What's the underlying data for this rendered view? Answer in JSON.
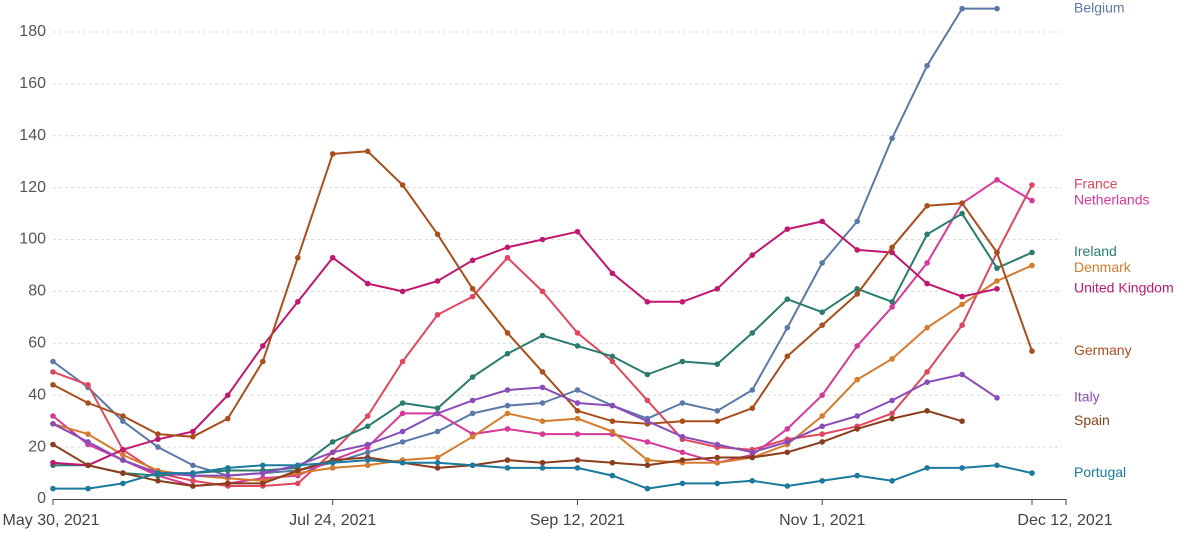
{
  "chart_data": {
    "type": "line",
    "title": "",
    "xlabel": "",
    "ylabel": "",
    "grid": true,
    "x_tick_labels": [
      "May 30, 2021",
      "Jul 24, 2021",
      "Sep 12, 2021",
      "Nov 1, 2021",
      "Dec 12, 2021"
    ],
    "x_tick_index": [
      0,
      8,
      15,
      22,
      28
    ],
    "y_ticks": [
      0,
      20,
      40,
      60,
      80,
      100,
      120,
      140,
      160,
      180
    ],
    "ylim": [
      0,
      190
    ],
    "point_count": 29,
    "series": [
      {
        "name": "Belgium",
        "color": "#5b78a8",
        "values": [
          53,
          43,
          30,
          20,
          13,
          9,
          10,
          11,
          14,
          18,
          22,
          26,
          33,
          36,
          37,
          42,
          36,
          31,
          37,
          34,
          42,
          66,
          91,
          107,
          139,
          167,
          189,
          189
        ]
      },
      {
        "name": "France",
        "color": "#e0475e",
        "values": [
          49,
          44,
          19,
          10,
          7,
          5,
          5,
          6,
          18,
          32,
          53,
          71,
          78,
          93,
          80,
          64,
          53,
          38,
          23,
          20,
          19,
          23,
          25,
          28,
          33,
          49,
          67,
          95,
          121
        ]
      },
      {
        "name": "Netherlands",
        "color": "#d6399a",
        "values": [
          32,
          21,
          15,
          9,
          5,
          6,
          8,
          9,
          15,
          20,
          33,
          33,
          25,
          27,
          25,
          25,
          25,
          22,
          18,
          14,
          17,
          27,
          40,
          59,
          74,
          91,
          114,
          123,
          115
        ]
      },
      {
        "name": "Ireland",
        "color": "#2a7d6e",
        "values": [
          13,
          13,
          10,
          9,
          10,
          11,
          11,
          12,
          22,
          28,
          37,
          35,
          47,
          56,
          63,
          59,
          55,
          48,
          53,
          52,
          64,
          77,
          72,
          81,
          76,
          102,
          110,
          89,
          95
        ]
      },
      {
        "name": "Denmark",
        "color": "#d47b2e",
        "values": [
          29,
          25,
          17,
          11,
          9,
          8,
          7,
          10,
          12,
          13,
          15,
          16,
          24,
          33,
          30,
          31,
          26,
          15,
          14,
          14,
          16,
          21,
          32,
          46,
          54,
          66,
          75,
          84,
          90
        ]
      },
      {
        "name": "United Kingdom",
        "color": "#c0186f",
        "values": [
          14,
          13,
          19,
          23,
          26,
          40,
          59,
          76,
          93,
          83,
          80,
          84,
          92,
          97,
          100,
          103,
          87,
          76,
          76,
          81,
          94,
          104,
          107,
          96,
          95,
          83,
          78,
          81
        ]
      },
      {
        "name": "Germany",
        "color": "#a84f1c",
        "values": [
          44,
          37,
          32,
          25,
          24,
          31,
          53,
          93,
          133,
          134,
          121,
          102,
          81,
          64,
          49,
          34,
          30,
          29,
          30,
          30,
          35,
          55,
          67,
          79,
          97,
          113,
          114,
          95,
          57
        ]
      },
      {
        "name": "Italy",
        "color": "#8a4cb8",
        "values": [
          29,
          22,
          15,
          10,
          9,
          9,
          10,
          13,
          18,
          21,
          26,
          33,
          38,
          42,
          43,
          37,
          36,
          30,
          24,
          21,
          18,
          22,
          28,
          32,
          38,
          45,
          48,
          39
        ]
      },
      {
        "name": "Spain",
        "color": "#8a3d1d",
        "values": [
          21,
          13,
          10,
          7,
          5,
          6,
          6,
          11,
          15,
          16,
          14,
          12,
          13,
          15,
          14,
          15,
          14,
          13,
          15,
          16,
          16,
          18,
          22,
          27,
          31,
          34,
          30
        ]
      },
      {
        "name": "Portugal",
        "color": "#1b7a9e",
        "values": [
          4,
          4,
          6,
          10,
          10,
          12,
          13,
          13,
          14,
          15,
          14,
          14,
          13,
          12,
          12,
          12,
          9,
          4,
          6,
          6,
          7,
          5,
          7,
          9,
          7,
          12,
          12,
          13,
          10
        ]
      }
    ]
  }
}
